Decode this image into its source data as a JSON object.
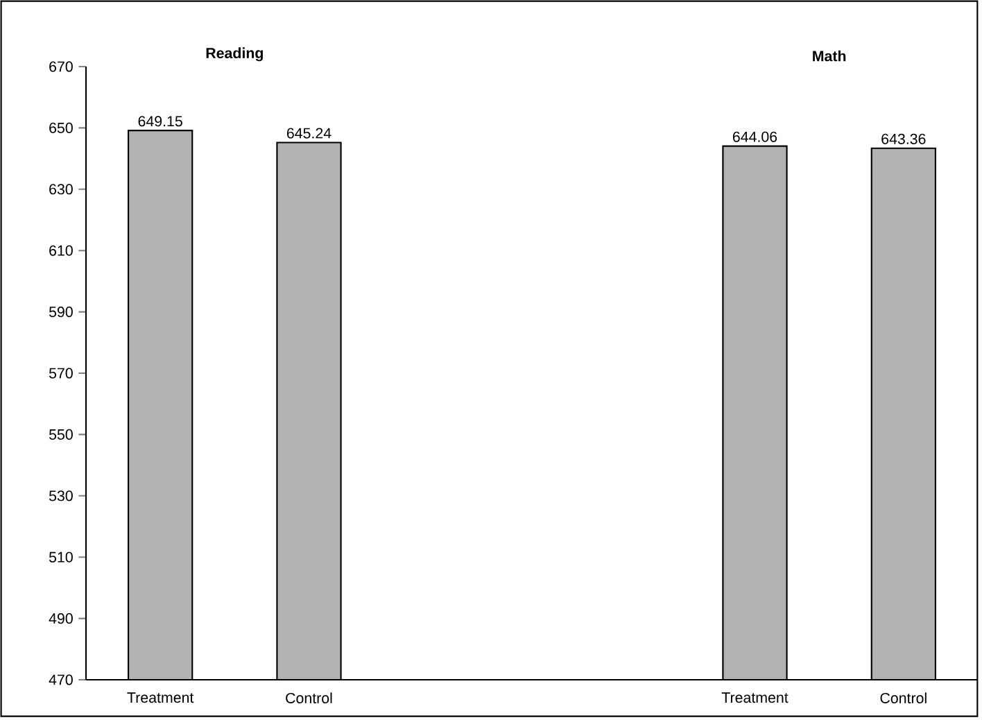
{
  "chart_data": {
    "type": "bar",
    "categories": [
      "Treatment",
      "Control",
      null,
      null,
      "Treatment",
      "Control"
    ],
    "values": [
      649.15,
      645.24,
      null,
      null,
      644.06,
      643.36
    ],
    "value_labels": [
      "649.15",
      "645.24",
      null,
      null,
      "644.06",
      "643.36"
    ],
    "color": "#b3b3b3",
    "ylim": [
      470,
      670
    ],
    "yticks": [
      470,
      490,
      510,
      530,
      550,
      570,
      590,
      610,
      630,
      650,
      670
    ],
    "annotations": [
      "Reading",
      "Math"
    ]
  }
}
